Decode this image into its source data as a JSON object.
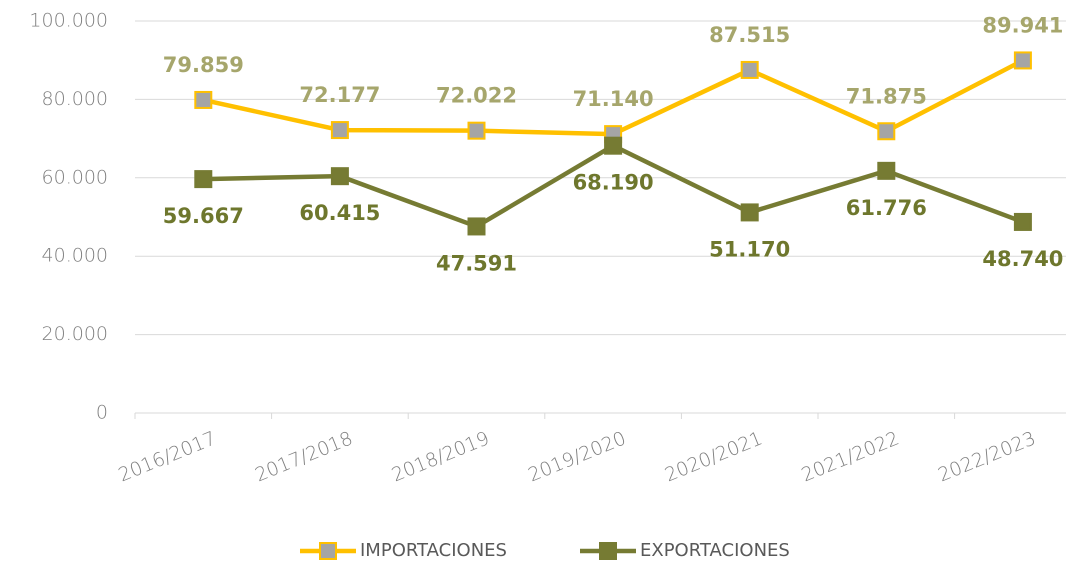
{
  "chart_data": {
    "type": "line",
    "categories": [
      "2016/2017",
      "2017/2018",
      "2018/2019",
      "2019/2020",
      "2020/2021",
      "2021/2022",
      "2022/2023"
    ],
    "series": [
      {
        "name": "IMPORTACIONES",
        "color": "#ffc000",
        "marker_color": "#a5a5a5",
        "label_color": "#a6a66c",
        "label_position": "above",
        "values": [
          79859,
          72177,
          72022,
          71140,
          87515,
          71875,
          89941
        ],
        "value_labels": [
          "79.859",
          "72.177",
          "72.022",
          "71.140",
          "87.515",
          "71.875",
          "89.941"
        ]
      },
      {
        "name": "EXPORTACIONES",
        "color": "#767b33",
        "marker_color": "#767b33",
        "label_color": "#6e772d",
        "label_position": "below",
        "values": [
          59667,
          60415,
          47591,
          68190,
          51170,
          61776,
          48740
        ],
        "value_labels": [
          "59.667",
          "60.415",
          "47.591",
          "68.190",
          "51.170",
          "61.776",
          "48.740"
        ]
      }
    ],
    "ylim": [
      0,
      100000
    ],
    "yticks": [
      0,
      {
        "value": 20000,
        "label": "20.000"
      },
      {
        "value": 40000,
        "label": "40.000"
      },
      {
        "value": 60000,
        "label": "60.000"
      },
      {
        "value": 80000,
        "label": "80.000"
      },
      {
        "value": 100000,
        "label": "100.000"
      }
    ],
    "grid": true,
    "legend": "bottom"
  }
}
